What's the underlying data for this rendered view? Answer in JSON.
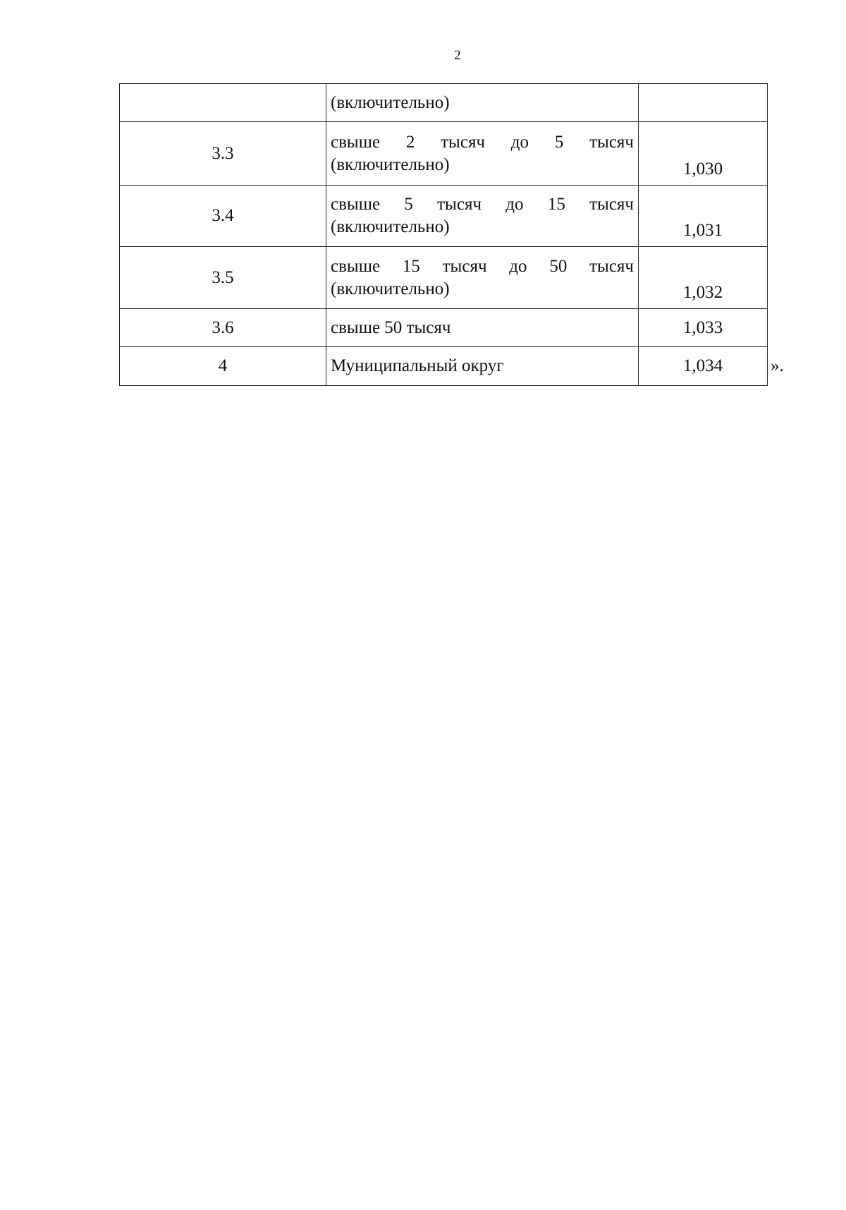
{
  "page_number": "2",
  "table": {
    "rows": [
      {
        "num": "",
        "line1": "",
        "line2": "(включительно)",
        "value": ""
      },
      {
        "num": "3.3",
        "line1": "свыше 2 тысяч до 5 тысяч",
        "line2": "(включительно)",
        "value": "1,030"
      },
      {
        "num": "3.4",
        "line1": "свыше 5 тысяч до 15 тысяч",
        "line2": "(включительно)",
        "value": "1,031"
      },
      {
        "num": "3.5",
        "line1": "свыше 15 тысяч до 50 тысяч",
        "line2": "(включительно)",
        "value": "1,032"
      },
      {
        "num": "3.6",
        "line1": "",
        "line2": "свыше 50 тысяч",
        "value": "1,033"
      },
      {
        "num": "4",
        "line1": "",
        "line2": "Муниципальный округ",
        "value": "1,034"
      }
    ]
  },
  "closing_mark": "»."
}
